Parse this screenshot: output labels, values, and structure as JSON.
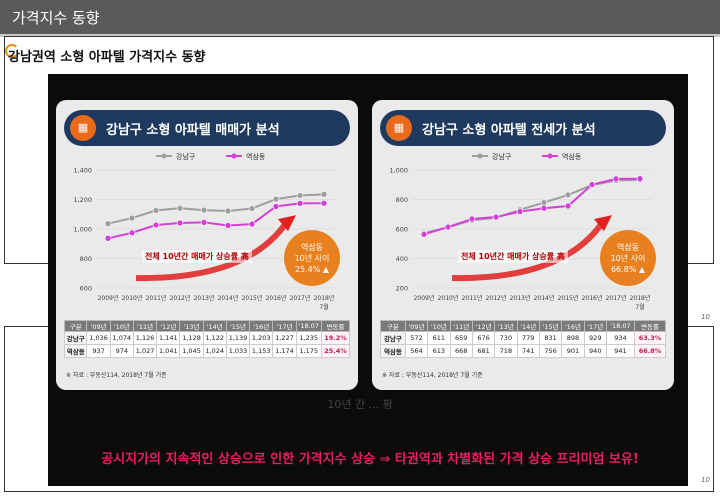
{
  "header": {
    "title": "가격지수 동향"
  },
  "subtitle": "강남권역 소형 아파텔 가격지수 동향",
  "panels": [
    {
      "title": "강남구 소형 아파텔 매매가 분석",
      "circle_lines": [
        "역삼동",
        "10년 사이",
        "25.4% ▲"
      ],
      "arrow_text": "전체 10년간 매매가 상승률 高",
      "table": {
        "headers": [
          "구분",
          "'09년",
          "'10년",
          "'11년",
          "'12년",
          "'13년",
          "'14년",
          "'15년",
          "'16년",
          "'17년",
          "'18.07",
          "변동률"
        ],
        "rows": [
          [
            "강남구",
            "1,036",
            "1,074",
            "1,126",
            "1,141",
            "1,128",
            "1,122",
            "1,139",
            "1,203",
            "1,227",
            "1,235",
            "19.2%"
          ],
          [
            "역삼동",
            "937",
            "974",
            "1,027",
            "1,041",
            "1,045",
            "1,024",
            "1,033",
            "1,153",
            "1,174",
            "1,175",
            "25.4%"
          ]
        ]
      },
      "note": "※ 자료 : 부동산114, 2018년 7월 기준"
    },
    {
      "title": "강남구 소형 아파텔 전세가 분석",
      "circle_lines": [
        "역삼동",
        "10년 사이",
        "66.8% ▲"
      ],
      "arrow_text": "전체 10년간 매매가 상승률 高",
      "table": {
        "headers": [
          "구분",
          "'09년",
          "'10년",
          "'11년",
          "'12년",
          "'13년",
          "'14년",
          "'15년",
          "'16년",
          "'17년",
          "'18.07",
          "변동률"
        ],
        "rows": [
          [
            "강남구",
            "572",
            "611",
            "659",
            "676",
            "730",
            "779",
            "831",
            "898",
            "929",
            "934",
            "63.3%"
          ],
          [
            "역삼동",
            "564",
            "613",
            "668",
            "681",
            "718",
            "741",
            "756",
            "901",
            "940",
            "941",
            "66.8%"
          ]
        ]
      },
      "note": "※ 자료 : 부동산114, 2018년 7월 기준"
    }
  ],
  "bottom_text": "10년 간 ... 평",
  "conclusion": "공시지가의 지속적인 상승으로 인한 가격지수 상승 ⇒ 타권역과 차별화된 가격 상승 프리미엄 보유!",
  "page_number": "10",
  "colors": {
    "series1": "#9e9e9e",
    "series2": "#d63fd6",
    "header": "#1e3a5f",
    "accent": "#e8801f"
  },
  "chart_data": [
    {
      "type": "line",
      "title": "강남구 소형 아파텔 매매가 분석",
      "categories": [
        "2009년",
        "2010년",
        "2011년",
        "2012년",
        "2013년",
        "2014년",
        "2015년",
        "2016년",
        "2017년",
        "2018년 7월"
      ],
      "x_tick_labels": [
        "2009년",
        "2010년",
        "2011년",
        "2012년",
        "2013년",
        "2014년",
        "2015년",
        "2016년",
        "2017년",
        "2018년"
      ],
      "x_tick_last_sub": "7월",
      "series": [
        {
          "name": "강남구",
          "values": [
            1036,
            1074,
            1126,
            1141,
            1128,
            1122,
            1139,
            1203,
            1227,
            1235
          ]
        },
        {
          "name": "역삼동",
          "values": [
            937,
            974,
            1027,
            1041,
            1045,
            1024,
            1033,
            1153,
            1174,
            1175
          ]
        }
      ],
      "ylim": [
        600,
        1400
      ],
      "yticks": [
        600,
        800,
        1000,
        1200,
        1400
      ],
      "ytick_labels": [
        "600",
        "800",
        "1,000",
        "1,200",
        "1,400"
      ],
      "legend": "top-center"
    },
    {
      "type": "line",
      "title": "강남구 소형 아파텔 전세가 분석",
      "categories": [
        "2009년",
        "2010년",
        "2011년",
        "2012년",
        "2013년",
        "2014년",
        "2015년",
        "2016년",
        "2017년",
        "2018년 7월"
      ],
      "x_tick_labels": [
        "2009년",
        "2010년",
        "2011년",
        "2012년",
        "2013년",
        "2014년",
        "2015년",
        "2016년",
        "2017년",
        "2018년"
      ],
      "x_tick_last_sub": "7월",
      "series": [
        {
          "name": "강남구",
          "values": [
            572,
            611,
            659,
            676,
            730,
            779,
            831,
            898,
            929,
            934
          ]
        },
        {
          "name": "역삼동",
          "values": [
            564,
            613,
            668,
            681,
            718,
            741,
            756,
            901,
            940,
            941
          ]
        }
      ],
      "ylim": [
        200,
        1000
      ],
      "yticks": [
        200,
        400,
        600,
        800,
        1000
      ],
      "ytick_labels": [
        "200",
        "400",
        "600",
        "800",
        "1,000"
      ],
      "legend": "top-center"
    }
  ]
}
